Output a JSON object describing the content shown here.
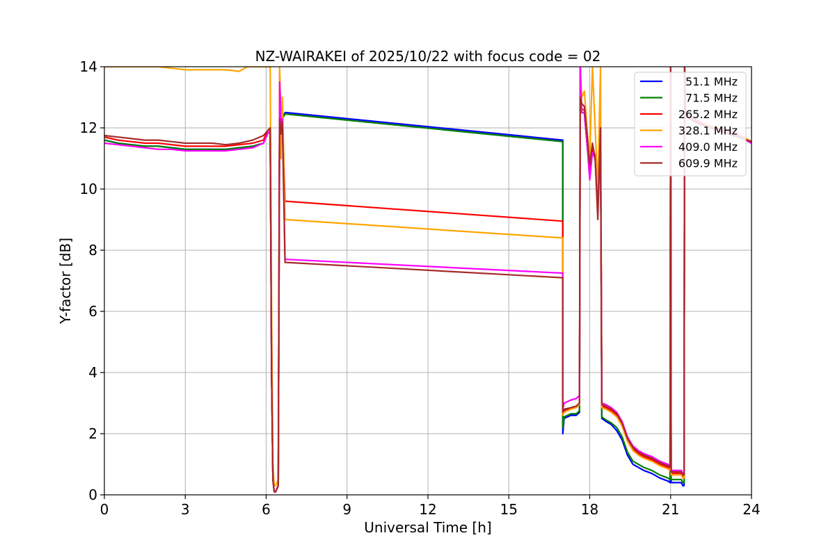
{
  "chart_data": {
    "type": "line",
    "title": "NZ-WAIRAKEI of 2025/10/22 with focus code = 02",
    "xlabel": "Universal Time [h]",
    "ylabel": "Y-factor [dB]",
    "xlim": [
      0,
      24
    ],
    "ylim": [
      0,
      14
    ],
    "xticks": [
      0,
      3,
      6,
      9,
      12,
      15,
      18,
      21,
      24
    ],
    "yticks": [
      0,
      2,
      4,
      6,
      8,
      10,
      12,
      14
    ],
    "grid": true,
    "legend_position": "top-right",
    "series": [
      {
        "name": " 51.1 MHz",
        "color": "#0000ff",
        "x": [
          0,
          0.5,
          1,
          1.5,
          2,
          2.5,
          3,
          3.5,
          4,
          4.5,
          5,
          5.5,
          5.9,
          6.05,
          6.15,
          6.2,
          6.25,
          6.3,
          6.35,
          6.4,
          6.45,
          6.5,
          6.55,
          6.6,
          6.7,
          6.75,
          17.0,
          17.0,
          17.05,
          17.3,
          17.5,
          17.62,
          17.65,
          17.7,
          17.8,
          17.9,
          18.0,
          18.1,
          18.2,
          18.3,
          18.4,
          18.45,
          18.6,
          18.8,
          19.0,
          19.2,
          19.4,
          19.6,
          19.8,
          20.0,
          20.3,
          20.6,
          20.9,
          20.98,
          21.0,
          21.02,
          21.4,
          21.45,
          21.5,
          21.52,
          21.55,
          21.6,
          22.0,
          22.5,
          23.0,
          23.5,
          24
        ],
        "y": [
          11.6,
          11.5,
          11.45,
          11.4,
          11.4,
          11.35,
          11.3,
          11.3,
          11.3,
          11.3,
          11.35,
          11.4,
          11.5,
          11.8,
          11.9,
          4,
          0.5,
          0.1,
          0.1,
          0.2,
          0.3,
          13.5,
          12.0,
          12.3,
          12.5,
          12.5,
          11.6,
          2.0,
          2.5,
          2.6,
          2.6,
          2.7,
          14,
          12.5,
          12.5,
          11.5,
          10.5,
          11.2,
          11.0,
          9.5,
          12.0,
          2.5,
          2.4,
          2.3,
          2.1,
          1.8,
          1.3,
          1.0,
          0.9,
          0.8,
          0.7,
          0.55,
          0.45,
          0.4,
          14,
          0.4,
          0.4,
          0.3,
          0.3,
          14,
          12.5,
          12.4,
          12.2,
          12.0,
          11.9,
          11.75,
          11.5
        ]
      },
      {
        "name": " 71.5 MHz",
        "color": "#008000",
        "x": [
          0,
          0.5,
          1,
          1.5,
          2,
          2.5,
          3,
          3.5,
          4,
          4.5,
          5,
          5.5,
          5.9,
          6.05,
          6.15,
          6.2,
          6.25,
          6.3,
          6.35,
          6.4,
          6.45,
          6.5,
          6.55,
          6.6,
          6.7,
          6.75,
          17.0,
          17.0,
          17.05,
          17.3,
          17.5,
          17.62,
          17.65,
          17.7,
          17.8,
          17.9,
          18.0,
          18.1,
          18.2,
          18.3,
          18.4,
          18.45,
          18.6,
          18.8,
          19.0,
          19.2,
          19.4,
          19.6,
          19.8,
          20.0,
          20.3,
          20.6,
          20.9,
          20.98,
          21.0,
          21.02,
          21.4,
          21.45,
          21.5,
          21.52,
          21.55,
          21.6,
          22.0,
          22.5,
          23.0,
          23.5,
          24
        ],
        "y": [
          11.6,
          11.5,
          11.45,
          11.4,
          11.4,
          11.35,
          11.3,
          11.3,
          11.3,
          11.3,
          11.35,
          11.4,
          11.5,
          11.8,
          11.9,
          4,
          0.5,
          0.1,
          0.1,
          0.2,
          0.3,
          13.5,
          12.0,
          12.3,
          12.45,
          12.45,
          11.55,
          2.2,
          2.55,
          2.65,
          2.65,
          2.75,
          14,
          12.5,
          12.5,
          11.5,
          10.5,
          11.2,
          11.0,
          9.5,
          12.0,
          2.55,
          2.45,
          2.35,
          2.2,
          1.9,
          1.4,
          1.1,
          1.0,
          0.9,
          0.8,
          0.65,
          0.55,
          0.5,
          14,
          0.5,
          0.5,
          0.4,
          0.4,
          14,
          12.5,
          12.4,
          12.2,
          12.0,
          11.9,
          11.75,
          11.5
        ]
      },
      {
        "name": "265.2 MHz",
        "color": "#ff0000",
        "x": [
          0,
          0.5,
          1,
          1.5,
          2,
          2.5,
          3,
          3.5,
          4,
          4.5,
          5,
          5.5,
          5.9,
          6.05,
          6.15,
          6.2,
          6.25,
          6.3,
          6.35,
          6.4,
          6.45,
          6.5,
          6.55,
          6.6,
          6.7,
          6.75,
          17.0,
          17.0,
          17.05,
          17.3,
          17.5,
          17.62,
          17.65,
          17.7,
          17.8,
          17.9,
          18.0,
          18.1,
          18.2,
          18.3,
          18.4,
          18.45,
          18.6,
          18.8,
          19.0,
          19.2,
          19.4,
          19.6,
          19.8,
          20.0,
          20.3,
          20.6,
          20.9,
          20.98,
          21.0,
          21.02,
          21.4,
          21.45,
          21.5,
          21.52,
          21.55,
          21.6,
          22.0,
          22.5,
          23.0,
          23.5,
          24
        ],
        "y": [
          11.7,
          11.6,
          11.55,
          11.5,
          11.5,
          11.45,
          11.4,
          11.4,
          11.4,
          11.4,
          11.45,
          11.5,
          11.6,
          11.9,
          12.0,
          4,
          0.5,
          0.1,
          0.1,
          0.2,
          0.3,
          13.8,
          12.2,
          12.5,
          9.6,
          9.6,
          8.95,
          2.6,
          2.75,
          2.85,
          2.9,
          3.0,
          14,
          12.6,
          12.6,
          11.6,
          10.6,
          11.3,
          11.1,
          9.6,
          12.1,
          2.9,
          2.85,
          2.75,
          2.6,
          2.3,
          1.8,
          1.5,
          1.35,
          1.25,
          1.15,
          1.0,
          0.9,
          0.85,
          14,
          0.7,
          0.7,
          0.6,
          0.6,
          14,
          12.55,
          12.45,
          12.25,
          12.05,
          11.95,
          11.8,
          11.55
        ]
      },
      {
        "name": "328.1 MHz",
        "color": "#ffa500",
        "x": [
          0,
          0.5,
          1,
          1.5,
          2,
          2.5,
          3,
          3.5,
          4,
          4.5,
          5,
          5.3,
          5.9,
          6.05,
          6.15,
          6.2,
          6.25,
          6.3,
          6.35,
          6.4,
          6.45,
          6.5,
          6.55,
          6.6,
          6.7,
          6.75,
          17.0,
          17.0,
          17.05,
          17.3,
          17.5,
          17.62,
          17.65,
          17.7,
          17.8,
          17.9,
          18.0,
          18.1,
          18.2,
          18.3,
          18.4,
          18.45,
          18.6,
          18.8,
          19.0,
          19.2,
          19.4,
          19.6,
          19.8,
          20.0,
          20.3,
          20.6,
          20.9,
          20.98,
          21.0,
          21.02,
          21.4,
          21.45,
          21.5,
          21.52,
          21.55,
          21.6,
          22.0,
          22.5,
          23.0,
          23.5,
          24
        ],
        "y": [
          14.0,
          14.0,
          14.0,
          14.0,
          14.0,
          13.95,
          13.9,
          13.9,
          13.9,
          13.9,
          13.85,
          14.0,
          14.0,
          14.0,
          14.0,
          6,
          1.0,
          0.3,
          0.3,
          0.4,
          0.5,
          14.0,
          11.0,
          13.0,
          9.0,
          9.0,
          8.4,
          2.6,
          2.7,
          2.8,
          2.85,
          2.95,
          14,
          13.0,
          13.2,
          12.0,
          11.0,
          14.0,
          12.0,
          10.0,
          14.0,
          2.85,
          2.8,
          2.7,
          2.55,
          2.25,
          1.75,
          1.45,
          1.3,
          1.2,
          1.1,
          0.95,
          0.85,
          0.8,
          14,
          0.65,
          0.65,
          0.55,
          0.55,
          14,
          12.55,
          12.45,
          12.25,
          12.05,
          11.95,
          11.8,
          11.55
        ]
      },
      {
        "name": "409.0 MHz",
        "color": "#ff00ff",
        "x": [
          0,
          0.5,
          1,
          1.5,
          2,
          2.5,
          3,
          3.5,
          4,
          4.5,
          5,
          5.5,
          5.9,
          6.05,
          6.15,
          6.2,
          6.25,
          6.3,
          6.35,
          6.4,
          6.45,
          6.5,
          6.55,
          6.6,
          6.7,
          6.75,
          17.0,
          17.0,
          17.05,
          17.3,
          17.5,
          17.62,
          17.65,
          17.7,
          17.8,
          17.9,
          18.0,
          18.1,
          18.2,
          18.3,
          18.4,
          18.45,
          18.6,
          18.8,
          19.0,
          19.2,
          19.4,
          19.6,
          19.8,
          20.0,
          20.3,
          20.6,
          20.9,
          20.98,
          21.0,
          21.02,
          21.4,
          21.45,
          21.5,
          21.52,
          21.55,
          21.6,
          22.0,
          22.5,
          23.0,
          23.5,
          24
        ],
        "y": [
          11.5,
          11.45,
          11.4,
          11.35,
          11.3,
          11.3,
          11.25,
          11.25,
          11.25,
          11.25,
          11.3,
          11.35,
          11.5,
          11.8,
          11.9,
          4,
          0.5,
          0.1,
          0.1,
          0.2,
          0.3,
          13.5,
          12.0,
          12.3,
          7.7,
          7.7,
          7.25,
          2.8,
          3.0,
          3.1,
          3.15,
          3.25,
          14,
          12.5,
          12.5,
          11.5,
          10.3,
          11.2,
          11.0,
          9.2,
          12.0,
          3.0,
          2.95,
          2.85,
          2.7,
          2.4,
          1.9,
          1.6,
          1.45,
          1.35,
          1.25,
          1.1,
          1.0,
          0.95,
          14,
          0.8,
          0.8,
          0.7,
          0.7,
          14,
          12.5,
          12.4,
          12.2,
          12.0,
          11.9,
          11.75,
          11.5
        ]
      },
      {
        "name": "609.9 MHz",
        "color": "#a52a2a",
        "x": [
          0,
          0.5,
          1,
          1.5,
          2,
          2.5,
          3,
          3.5,
          4,
          4.5,
          5,
          5.5,
          5.9,
          6.05,
          6.15,
          6.2,
          6.25,
          6.3,
          6.35,
          6.4,
          6.45,
          6.5,
          6.55,
          6.6,
          6.7,
          6.75,
          17.0,
          17.0,
          17.05,
          17.3,
          17.5,
          17.62,
          17.65,
          17.7,
          17.8,
          17.9,
          18.0,
          18.1,
          18.2,
          18.3,
          18.4,
          18.45,
          18.6,
          18.8,
          19.0,
          19.2,
          19.4,
          19.6,
          19.8,
          20.0,
          20.3,
          20.6,
          20.9,
          20.98,
          21.0,
          21.02,
          21.4,
          21.45,
          21.5,
          21.52,
          21.55,
          21.6,
          22.0,
          22.5,
          23.0,
          23.5,
          24
        ],
        "y": [
          11.75,
          11.7,
          11.65,
          11.6,
          11.6,
          11.55,
          11.5,
          11.5,
          11.5,
          11.45,
          11.5,
          11.6,
          11.75,
          11.9,
          12.0,
          4,
          0.5,
          0.1,
          0.1,
          0.2,
          0.3,
          12.3,
          11.8,
          12.2,
          7.6,
          7.6,
          7.1,
          2.7,
          2.8,
          2.85,
          2.9,
          3.0,
          13.0,
          12.8,
          12.7,
          11.8,
          10.8,
          11.5,
          11.0,
          9.0,
          12.0,
          2.95,
          2.9,
          2.8,
          2.65,
          2.35,
          1.85,
          1.55,
          1.4,
          1.3,
          1.2,
          1.05,
          0.95,
          0.9,
          14,
          0.75,
          0.75,
          0.65,
          0.65,
          14,
          12.5,
          12.35,
          12.15,
          12.0,
          11.85,
          11.7,
          11.55
        ]
      }
    ]
  }
}
